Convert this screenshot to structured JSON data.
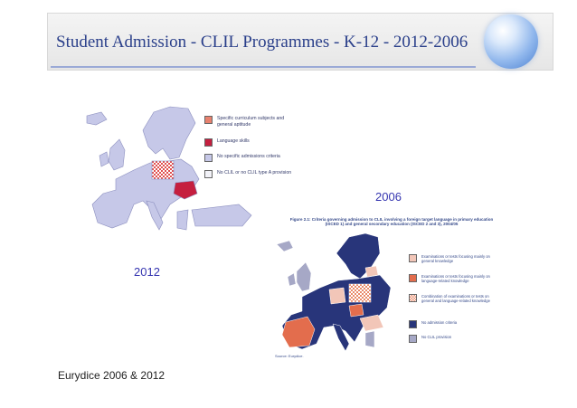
{
  "slide": {
    "title": "Student Admission - CLIL Programmes - K-12 - 2012-2006",
    "caption": "Eurydice 2006 & 2012"
  },
  "map_2012": {
    "year_label": "2012",
    "legend": [
      {
        "label": "Specific curriculum subjects and general aptitude",
        "color": "#e8816e"
      },
      {
        "label": "Language skills",
        "color": "#c51f3f"
      },
      {
        "label": "No specific admissions criteria",
        "color": "#c6c8e8"
      },
      {
        "label": "No CLIL or no CLIL type A provision",
        "color": "#f2f2f8"
      }
    ]
  },
  "map_2006": {
    "year_label": "2006",
    "figure_title": "Figure 2.1: Criteria governing admission to CLIL involving a foreign target language in primary education (ISCED 1) and general secondary education (ISCED 2 and 3), 2004/05",
    "legend": [
      {
        "label": "Examinations or tests focusing mainly on general knowledge",
        "color": "#f2c6b8"
      },
      {
        "label": "Examinations or tests focusing mainly on language-related knowledge",
        "color": "#e36d4d"
      },
      {
        "label": "Combination of examinations or tests on general and language-related knowledge",
        "color": "#f0a58c"
      },
      {
        "label": "No admission criteria",
        "color": "#28357a"
      },
      {
        "label": "No CLIL provision",
        "color": "#a6a8c6"
      }
    ],
    "source": "Source: Eurydice."
  },
  "colors": {
    "title": "#2a3f8a",
    "year_label": "#3535b0",
    "map_2012_land": "#c6c8e8",
    "map_2006_land": "#28357a"
  }
}
